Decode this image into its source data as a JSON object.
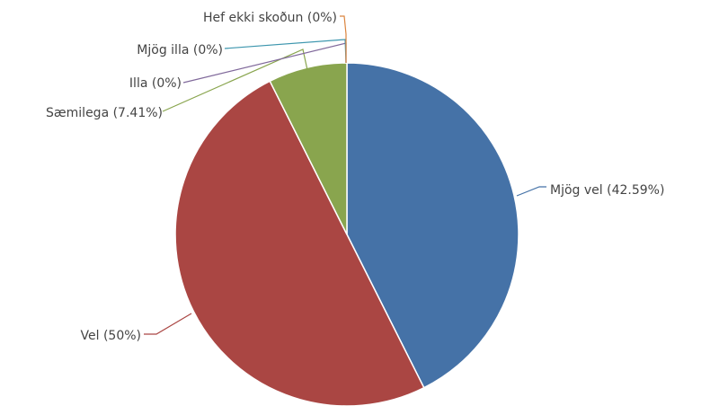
{
  "chart_data": {
    "type": "pie",
    "title": "",
    "start_angle_deg": 0,
    "direction": "clockwise",
    "slices": [
      {
        "label": "Mjög vel (42.59%)",
        "value": 42.59,
        "color": "#4572a7"
      },
      {
        "label": "Vel (50%)",
        "value": 50,
        "color": "#aa4643"
      },
      {
        "label": "Sæmilega (7.41%)",
        "value": 7.41,
        "color": "#89a54e"
      },
      {
        "label": "Illa (0%)",
        "value": 0,
        "color": "#80699b"
      },
      {
        "label": "Mjög illa (0%)",
        "value": 0,
        "color": "#3d96ae"
      },
      {
        "label": "Hef ekki skoðun (0%)",
        "value": 0,
        "color": "#db843d"
      }
    ]
  }
}
